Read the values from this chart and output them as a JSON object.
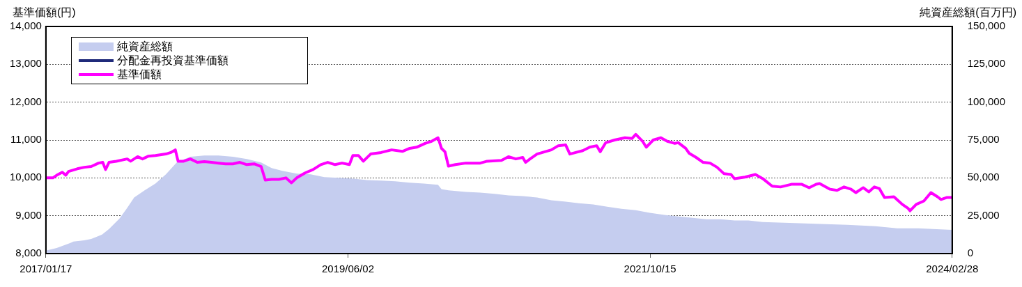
{
  "chart_data": {
    "type": "line",
    "ylabel": "基準価額(円)",
    "y2label": "純資産総額(百万円)",
    "xlim": [
      "2017-01-17",
      "2024-02-28"
    ],
    "xticks": [
      {
        "value": "2017-01-17",
        "label": "2017/01/17"
      },
      {
        "value": "2019-06-02",
        "label": "2019/06/02"
      },
      {
        "value": "2021-10-15",
        "label": "2021/10/15"
      },
      {
        "value": "2024-02-28",
        "label": "2024/02/28"
      }
    ],
    "ylim": [
      8000,
      14000
    ],
    "yticks": [
      {
        "value": 8000,
        "label": "8,000"
      },
      {
        "value": 9000,
        "label": "9,000"
      },
      {
        "value": 10000,
        "label": "10,000"
      },
      {
        "value": 11000,
        "label": "11,000"
      },
      {
        "value": 12000,
        "label": "12,000"
      },
      {
        "value": 13000,
        "label": "13,000"
      },
      {
        "value": 14000,
        "label": "14,000"
      }
    ],
    "y2lim": [
      0,
      150000
    ],
    "y2ticks": [
      0,
      {
        "value": 25000,
        "label": "25,000"
      },
      {
        "value": 50000,
        "label": "50,000"
      },
      {
        "value": 75000,
        "label": "75,000"
      },
      {
        "value": 100000,
        "label": "100,000"
      },
      {
        "value": 125000,
        "label": "125,000"
      },
      {
        "value": 150000,
        "label": "150,000"
      }
    ],
    "grid": "y",
    "legend": "top left",
    "marker": "none",
    "line_style": "solid",
    "series": [
      {
        "name": "純資産総額",
        "type": "area",
        "axis": "y2",
        "color": "#c5cdef",
        "x": [
          "2017-01-17",
          "2017-02-17",
          "2017-03-27",
          "2017-04-06",
          "2017-05-07",
          "2017-05-27",
          "2017-06-06",
          "2017-06-27",
          "2017-07-17",
          "2017-08-16",
          "2017-09-07",
          "2017-09-27",
          "2017-10-27",
          "2017-11-27",
          "2017-12-27",
          "2018-01-27",
          "2018-03-07",
          "2018-04-16",
          "2018-05-27",
          "2018-07-07",
          "2018-08-16",
          "2018-09-26",
          "2018-10-26",
          "2018-11-26",
          "2019-01-06",
          "2019-02-15",
          "2019-03-26",
          "2019-05-06",
          "2019-06-16",
          "2019-07-26",
          "2019-09-05",
          "2019-10-15",
          "2019-11-26",
          "2020-01-05",
          "2020-02-15",
          "2020-02-25",
          "2020-03-16",
          "2020-05-05",
          "2020-06-15",
          "2020-07-26",
          "2020-09-04",
          "2020-10-15",
          "2020-11-25",
          "2021-01-05",
          "2021-02-15",
          "2021-03-25",
          "2021-05-05",
          "2021-06-14",
          "2021-07-25",
          "2021-09-04",
          "2021-10-14",
          "2021-11-25",
          "2022-01-04",
          "2022-02-14",
          "2022-03-25",
          "2022-05-05",
          "2022-06-14",
          "2022-07-24",
          "2022-09-03",
          "2022-11-03",
          "2023-01-03",
          "2023-03-03",
          "2023-05-03",
          "2023-07-24",
          "2023-09-23",
          "2023-11-23",
          "2024-01-03",
          "2024-02-28"
        ],
        "values": [
          1900,
          3700,
          6900,
          7900,
          8800,
          9700,
          10600,
          12500,
          16200,
          23100,
          30100,
          37000,
          41700,
          46300,
          52300,
          60200,
          63900,
          64800,
          64800,
          63900,
          62500,
          60200,
          56500,
          54600,
          52800,
          52300,
          50500,
          50000,
          49500,
          48600,
          48200,
          47700,
          46800,
          46300,
          45400,
          42600,
          41700,
          40700,
          40300,
          39400,
          38400,
          38000,
          37000,
          35200,
          34300,
          33300,
          32400,
          31000,
          29600,
          28700,
          26900,
          25500,
          24500,
          23600,
          22700,
          22700,
          21800,
          21800,
          20800,
          20400,
          19900,
          19400,
          19000,
          18100,
          16700,
          16700,
          16200,
          15700
        ]
      },
      {
        "name": "分配金再投資基準価額",
        "color": "#1f2a7a"
      },
      {
        "name": "基準価額",
        "color": "#ff00ff",
        "x": [
          "2017-01-17",
          "2017-02-06",
          "2017-02-17",
          "2017-03-05",
          "2017-03-15",
          "2017-03-23",
          "2017-04-17",
          "2017-05-07",
          "2017-05-27",
          "2017-06-17",
          "2017-06-29",
          "2017-07-07",
          "2017-07-17",
          "2017-08-07",
          "2017-09-07",
          "2017-09-17",
          "2017-10-07",
          "2017-10-21",
          "2017-11-06",
          "2017-11-27",
          "2017-12-27",
          "2018-01-10",
          "2018-01-23",
          "2018-01-31",
          "2018-02-16",
          "2018-03-07",
          "2018-03-27",
          "2018-04-16",
          "2018-05-07",
          "2018-05-27",
          "2018-06-16",
          "2018-07-07",
          "2018-07-27",
          "2018-08-16",
          "2018-09-06",
          "2018-09-26",
          "2018-10-08",
          "2018-10-26",
          "2018-11-16",
          "2018-12-06",
          "2018-12-22",
          "2019-01-06",
          "2019-01-30",
          "2019-02-22",
          "2019-03-16",
          "2019-04-05",
          "2019-04-26",
          "2019-05-16",
          "2019-06-06",
          "2019-06-16",
          "2019-07-02",
          "2019-07-16",
          "2019-08-06",
          "2019-09-05",
          "2019-10-05",
          "2019-11-05",
          "2019-11-26",
          "2019-12-16",
          "2020-01-09",
          "2020-01-26",
          "2020-02-15",
          "2020-02-25",
          "2020-03-06",
          "2020-03-16",
          "2020-04-05",
          "2020-05-05",
          "2020-06-15",
          "2020-07-05",
          "2020-08-15",
          "2020-09-04",
          "2020-09-25",
          "2020-10-15",
          "2020-10-23",
          "2020-11-05",
          "2020-11-25",
          "2021-01-05",
          "2021-01-25",
          "2021-02-15",
          "2021-02-27",
          "2021-03-16",
          "2021-04-05",
          "2021-04-25",
          "2021-05-15",
          "2021-05-25",
          "2021-06-10",
          "2021-07-05",
          "2021-08-04",
          "2021-08-24",
          "2021-09-04",
          "2021-09-24",
          "2021-10-04",
          "2021-10-24",
          "2021-11-15",
          "2021-12-05",
          "2021-12-25",
          "2022-01-04",
          "2022-01-25",
          "2022-02-04",
          "2022-02-24",
          "2022-03-16",
          "2022-04-05",
          "2022-04-25",
          "2022-05-15",
          "2022-06-04",
          "2022-06-14",
          "2022-07-14",
          "2022-08-13",
          "2022-09-03",
          "2022-09-30",
          "2022-10-24",
          "2022-11-24",
          "2022-12-24",
          "2023-01-14",
          "2023-02-03",
          "2023-02-13",
          "2023-03-15",
          "2023-04-04",
          "2023-04-24",
          "2023-05-14",
          "2023-05-28",
          "2023-06-18",
          "2023-07-04",
          "2023-07-20",
          "2023-08-03",
          "2023-08-18",
          "2023-09-14",
          "2023-10-08",
          "2023-10-24",
          "2023-10-30",
          "2023-11-17",
          "2023-12-09",
          "2023-12-29",
          "2024-01-17",
          "2024-01-27",
          "2024-02-12",
          "2024-02-28"
        ],
        "values": [
          10000,
          10000,
          10070,
          10150,
          10070,
          10170,
          10240,
          10280,
          10300,
          10390,
          10410,
          10220,
          10410,
          10440,
          10500,
          10440,
          10560,
          10500,
          10570,
          10590,
          10630,
          10670,
          10740,
          10440,
          10440,
          10500,
          10410,
          10430,
          10410,
          10390,
          10370,
          10370,
          10410,
          10350,
          10370,
          10300,
          9940,
          9960,
          9960,
          10000,
          9870,
          10000,
          10130,
          10220,
          10350,
          10410,
          10350,
          10390,
          10350,
          10590,
          10590,
          10440,
          10630,
          10670,
          10740,
          10700,
          10780,
          10810,
          10910,
          10960,
          11060,
          10780,
          10690,
          10310,
          10350,
          10390,
          10390,
          10440,
          10460,
          10560,
          10500,
          10540,
          10410,
          10500,
          10630,
          10740,
          10850,
          10870,
          10630,
          10670,
          10720,
          10810,
          10850,
          10690,
          10930,
          11000,
          11060,
          11040,
          11150,
          10960,
          10810,
          11000,
          11060,
          10960,
          10910,
          10930,
          10780,
          10650,
          10540,
          10410,
          10390,
          10280,
          10110,
          10090,
          9980,
          10020,
          10090,
          9980,
          9780,
          9760,
          9830,
          9830,
          9740,
          9830,
          9850,
          9700,
          9670,
          9760,
          9700,
          9610,
          9740,
          9630,
          9760,
          9720,
          9480,
          9500,
          9300,
          9200,
          9130,
          9300,
          9390,
          9610,
          9500,
          9430,
          9480,
          9480
        ]
      }
    ]
  }
}
